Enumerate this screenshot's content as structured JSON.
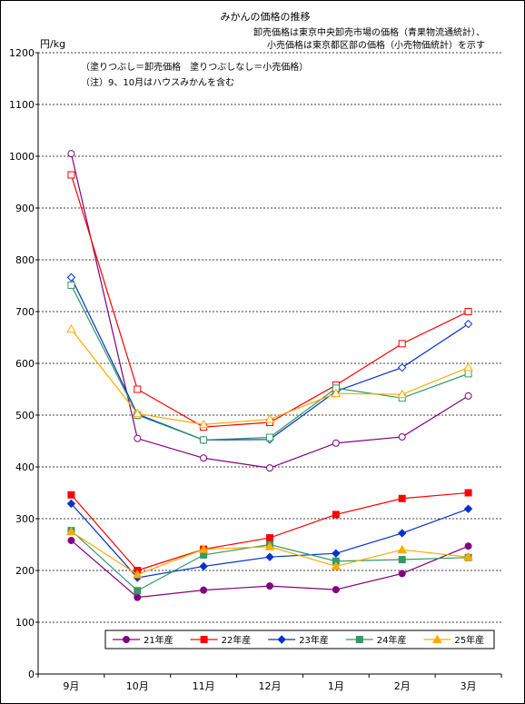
{
  "chart_data": {
    "type": "line",
    "title": "みかんの価格の推移",
    "subtitle_lines": [
      "卸売価格は東京中央卸売市場の価格（青果物流通統計）、",
      "小売価格は東京都区部の価格（小売物価統計）を示す"
    ],
    "notes": [
      "（塗りつぶし＝卸売価格　塗りつぶしなし＝小売価格）",
      "（注）9、10月はハウスみかんを含む"
    ],
    "ylabel": "円/kg",
    "ylim": [
      0,
      1200
    ],
    "yticks": [
      0,
      100,
      200,
      300,
      400,
      500,
      600,
      700,
      800,
      900,
      1000,
      1100,
      1200
    ],
    "grid": true,
    "legend_position": "bottom",
    "categories": [
      "9月",
      "10月",
      "11月",
      "12月",
      "1月",
      "2月",
      "3月"
    ],
    "series": [
      {
        "name": "21年産",
        "color": "#800080",
        "marker": "circle",
        "retail": [
          1005,
          455,
          417,
          398,
          446,
          458,
          537
        ],
        "wholesale": [
          258,
          148,
          162,
          170,
          163,
          194,
          247
        ]
      },
      {
        "name": "22年産",
        "color": "#ff0000",
        "marker": "square",
        "retail": [
          964,
          550,
          477,
          486,
          558,
          638,
          700
        ],
        "wholesale": [
          346,
          200,
          241,
          263,
          308,
          339,
          350
        ]
      },
      {
        "name": "23年産",
        "color": "#0033cc",
        "marker": "diamond",
        "retail": [
          766,
          502,
          452,
          453,
          546,
          592,
          676
        ],
        "wholesale": [
          329,
          186,
          208,
          226,
          233,
          272,
          319
        ]
      },
      {
        "name": "24年産",
        "color": "#339966",
        "marker": "square",
        "retail": [
          751,
          500,
          452,
          457,
          552,
          533,
          580
        ],
        "wholesale": [
          277,
          161,
          230,
          250,
          218,
          221,
          225
        ]
      },
      {
        "name": "25年産",
        "color": "#ffaa00",
        "marker": "triangle",
        "retail": [
          666,
          503,
          482,
          492,
          542,
          540,
          592
        ],
        "wholesale": [
          275,
          192,
          241,
          246,
          208,
          240,
          226
        ]
      }
    ]
  }
}
